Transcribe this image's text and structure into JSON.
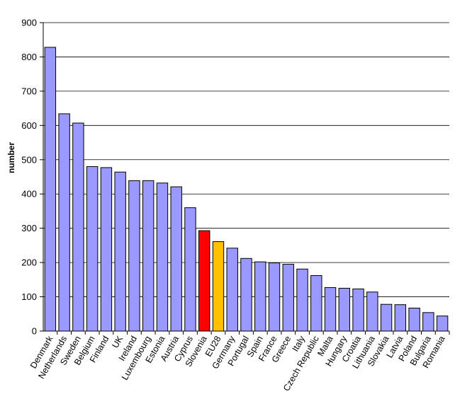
{
  "chart_data": {
    "type": "bar",
    "title": "",
    "xlabel": "",
    "ylabel": "number",
    "ylim": [
      0,
      900
    ],
    "yticks": [
      0,
      100,
      200,
      300,
      400,
      500,
      600,
      700,
      800,
      900
    ],
    "grid": true,
    "legend": "none",
    "categories": [
      "Denmark",
      "Netherlands",
      "Sweden",
      "Belgium",
      "Finland",
      "UK",
      "Ireland",
      "Luxembourg",
      "Estonia",
      "Austria",
      "Cyprus",
      "Slovenia",
      "EU28",
      "Germany",
      "Portugal",
      "Spain",
      "France",
      "Greece",
      "Italy",
      "Czech Republic",
      "Malta",
      "Hungary",
      "Croatia",
      "Lithuania",
      "Slovakia",
      "Latvia",
      "Poland",
      "Bulgaria",
      "Romania"
    ],
    "values": [
      828,
      634,
      607,
      480,
      477,
      464,
      439,
      439,
      432,
      421,
      360,
      293,
      261,
      242,
      212,
      202,
      199,
      195,
      181,
      162,
      127,
      125,
      123,
      114,
      78,
      77,
      67,
      54,
      44
    ],
    "colors": {
      "default": "#9999ff",
      "Slovenia": "#ff0000",
      "EU28": "#ffc000",
      "stroke": "#000000",
      "grid": "#000000"
    }
  }
}
